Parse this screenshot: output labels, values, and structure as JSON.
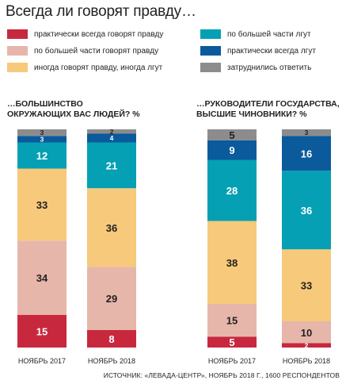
{
  "title": "Всегда ли говорят правду…",
  "legend": [
    {
      "label": "практически всегда говорят правду",
      "color": "#c8283e",
      "icon": "legend-swatch"
    },
    {
      "label": "по большей части говорят правду",
      "color": "#e6b6aa",
      "icon": "legend-swatch"
    },
    {
      "label": "иногда говорят правду, иногда лгут",
      "color": "#f7c97a",
      "icon": "legend-swatch"
    },
    {
      "label": "по большей части лгут",
      "color": "#06a0b4",
      "icon": "legend-swatch"
    },
    {
      "label": "практически всегда лгут",
      "color": "#0a5a9c",
      "icon": "legend-swatch"
    },
    {
      "label": "затруднились ответить",
      "color": "#8c8c8c",
      "icon": "legend-swatch"
    }
  ],
  "panels": [
    {
      "title_line1": "…БОЛЬШИНСТВО",
      "title_line2": "ОКРУЖАЮЩИХ ВАС ЛЮДЕЙ? %"
    },
    {
      "title_line1": "…РУКОВОДИТЕЛИ ГОСУДАРСТВА,",
      "title_line2": "ВЫСШИЕ ЧИНОВНИКИ? %"
    }
  ],
  "source": "ИСТОЧНИК: «ЛЕВАДА-ЦЕНТР», НОЯБРЬ 2018 Г., 1600 РЕСПОНДЕНТОВ",
  "chart_data": [
    {
      "type": "bar",
      "stacked": true,
      "title": "…БОЛЬШИНСТВО ОКРУЖАЮЩИХ ВАС ЛЮДЕЙ? %",
      "categories": [
        "НОЯБРЬ 2017",
        "НОЯБРЬ 2018"
      ],
      "ylim": [
        0,
        100
      ],
      "series": [
        {
          "name": "практически всегда говорят правду",
          "values": [
            15,
            8
          ]
        },
        {
          "name": "по большей части говорят правду",
          "values": [
            34,
            29
          ]
        },
        {
          "name": "иногда говорят правду, иногда лгут",
          "values": [
            33,
            36
          ]
        },
        {
          "name": "по большей части лгут",
          "values": [
            12,
            21
          ]
        },
        {
          "name": "практически всегда лгут",
          "values": [
            3,
            4
          ]
        },
        {
          "name": "затруднились ответить",
          "values": [
            3,
            2
          ]
        }
      ]
    },
    {
      "type": "bar",
      "stacked": true,
      "title": "…РУКОВОДИТЕЛИ ГОСУДАРСТВА, ВЫСШИЕ ЧИНОВНИКИ? %",
      "categories": [
        "НОЯБРЬ 2017",
        "НОЯБРЬ 2018"
      ],
      "ylim": [
        0,
        100
      ],
      "series": [
        {
          "name": "практически всегда говорят правду",
          "values": [
            5,
            2
          ]
        },
        {
          "name": "по большей части говорят правду",
          "values": [
            15,
            10
          ]
        },
        {
          "name": "иногда говорят правду, иногда лгут",
          "values": [
            38,
            33
          ]
        },
        {
          "name": "по большей части лгут",
          "values": [
            28,
            36
          ]
        },
        {
          "name": "практически всегда лгут",
          "values": [
            9,
            16
          ]
        },
        {
          "name": "затруднились ответить",
          "values": [
            5,
            3
          ]
        }
      ]
    }
  ]
}
